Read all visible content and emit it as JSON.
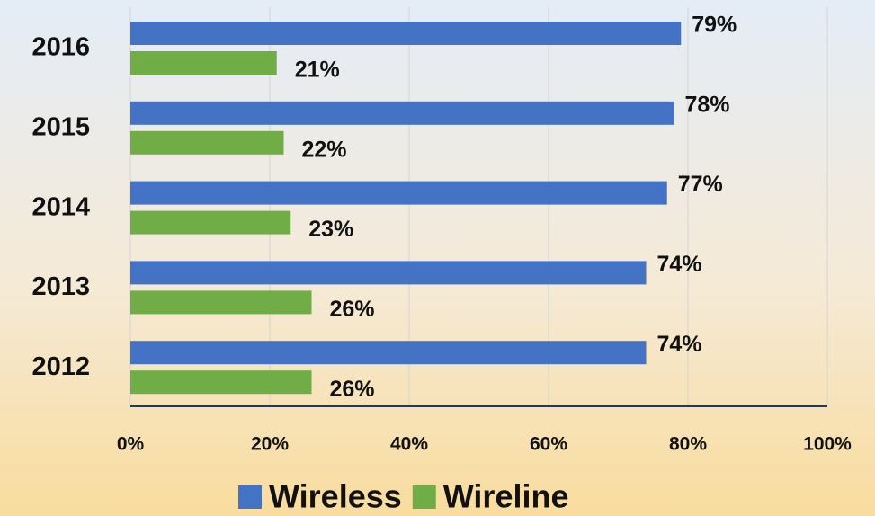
{
  "chart_data": {
    "type": "bar",
    "orientation": "horizontal",
    "categories": [
      "2016",
      "2015",
      "2014",
      "2013",
      "2012"
    ],
    "series": [
      {
        "name": "Wireless",
        "color": "#4472c4",
        "values": [
          79,
          78,
          77,
          74,
          74
        ],
        "value_labels": [
          "79%",
          "78%",
          "77%",
          "74%",
          "74%"
        ]
      },
      {
        "name": "Wireline",
        "color": "#70ad47",
        "values": [
          21,
          22,
          23,
          26,
          26
        ],
        "value_labels": [
          "21%",
          "22%",
          "23%",
          "26%",
          "26%"
        ]
      }
    ],
    "xlim": [
      0,
      100
    ],
    "xticks": [
      {
        "value": 0,
        "label": "0%"
      },
      {
        "value": 20,
        "label": "20%"
      },
      {
        "value": 40,
        "label": "40%"
      },
      {
        "value": 60,
        "label": "60%"
      },
      {
        "value": 80,
        "label": "80%"
      },
      {
        "value": 100,
        "label": "100%"
      }
    ],
    "grid": true,
    "legend": "bottom"
  }
}
